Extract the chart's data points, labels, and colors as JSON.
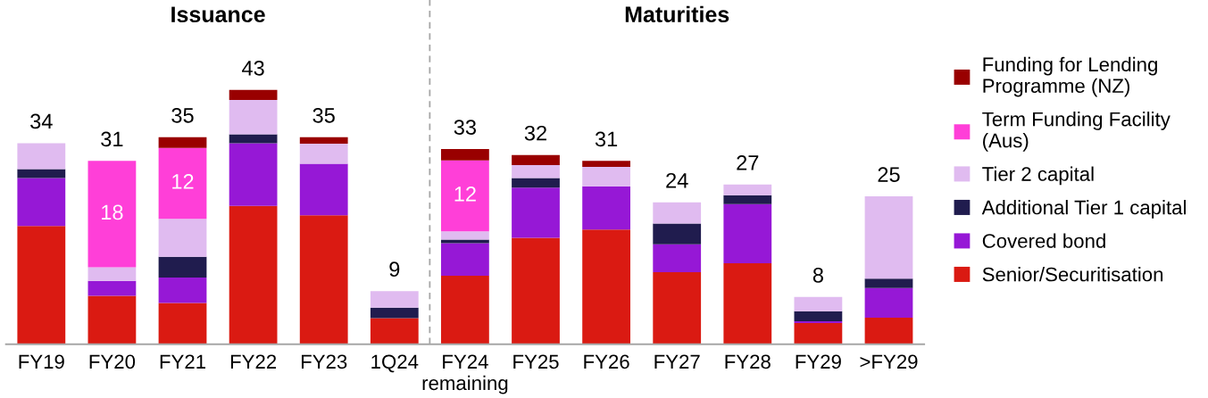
{
  "chart_data": {
    "type": "bar",
    "stacked": true,
    "categories": [
      "FY19",
      "FY20",
      "FY21",
      "FY22",
      "FY23",
      "1Q24",
      "FY24\nremaining",
      "FY25",
      "FY26",
      "FY27",
      "FY28",
      "FY29",
      ">FY29"
    ],
    "series": [
      {
        "name": "Senior/Securitisation",
        "color": "#da1a12",
        "values": [
          20,
          8.2,
          7.0,
          23.4,
          21.8,
          4.4,
          11.6,
          18.0,
          19.4,
          12.2,
          13.7,
          3.6,
          4.5
        ]
      },
      {
        "name": "Covered bond",
        "color": "#9618d6",
        "values": [
          8.1,
          2.5,
          4.3,
          10.6,
          8.7,
          0,
          5.5,
          8.5,
          7.3,
          4.7,
          10.0,
          0.3,
          5.0
        ]
      },
      {
        "name": "Additional Tier 1 capital",
        "color": "#201c4e",
        "values": [
          1.5,
          0,
          3.5,
          1.5,
          0,
          1.8,
          0.6,
          1.6,
          0,
          3.5,
          1.5,
          1.7,
          1.6
        ]
      },
      {
        "name": "Tier 2 capital",
        "color": "#e0bbf0",
        "values": [
          4.4,
          2.3,
          6.4,
          5.8,
          3.4,
          2.8,
          1.4,
          2.2,
          3.3,
          3.6,
          1.8,
          2.4,
          13.9
        ]
      },
      {
        "name": "Term Funding Facility\n(Aus)",
        "color": "#ff3fd8",
        "values": [
          0,
          18,
          12,
          0,
          0,
          0,
          12,
          0,
          0,
          0,
          0,
          0,
          0
        ],
        "value_labels": [
          null,
          "18",
          "12",
          null,
          null,
          null,
          "12",
          null,
          null,
          null,
          null,
          null,
          null
        ]
      },
      {
        "name": "Funding for Lending\nProgramme (NZ)",
        "color": "#990000",
        "values": [
          0,
          0,
          1.8,
          1.7,
          1.1,
          0,
          1.9,
          1.7,
          1.0,
          0,
          0,
          0,
          0
        ]
      }
    ],
    "totals": [
      "34",
      "31",
      "35",
      "43",
      "35",
      "9",
      "33",
      "32",
      "31",
      "24",
      "27",
      "8",
      "25"
    ],
    "annotations": [
      "Issuance",
      "Maturities"
    ],
    "legend": "right",
    "grid": false
  }
}
